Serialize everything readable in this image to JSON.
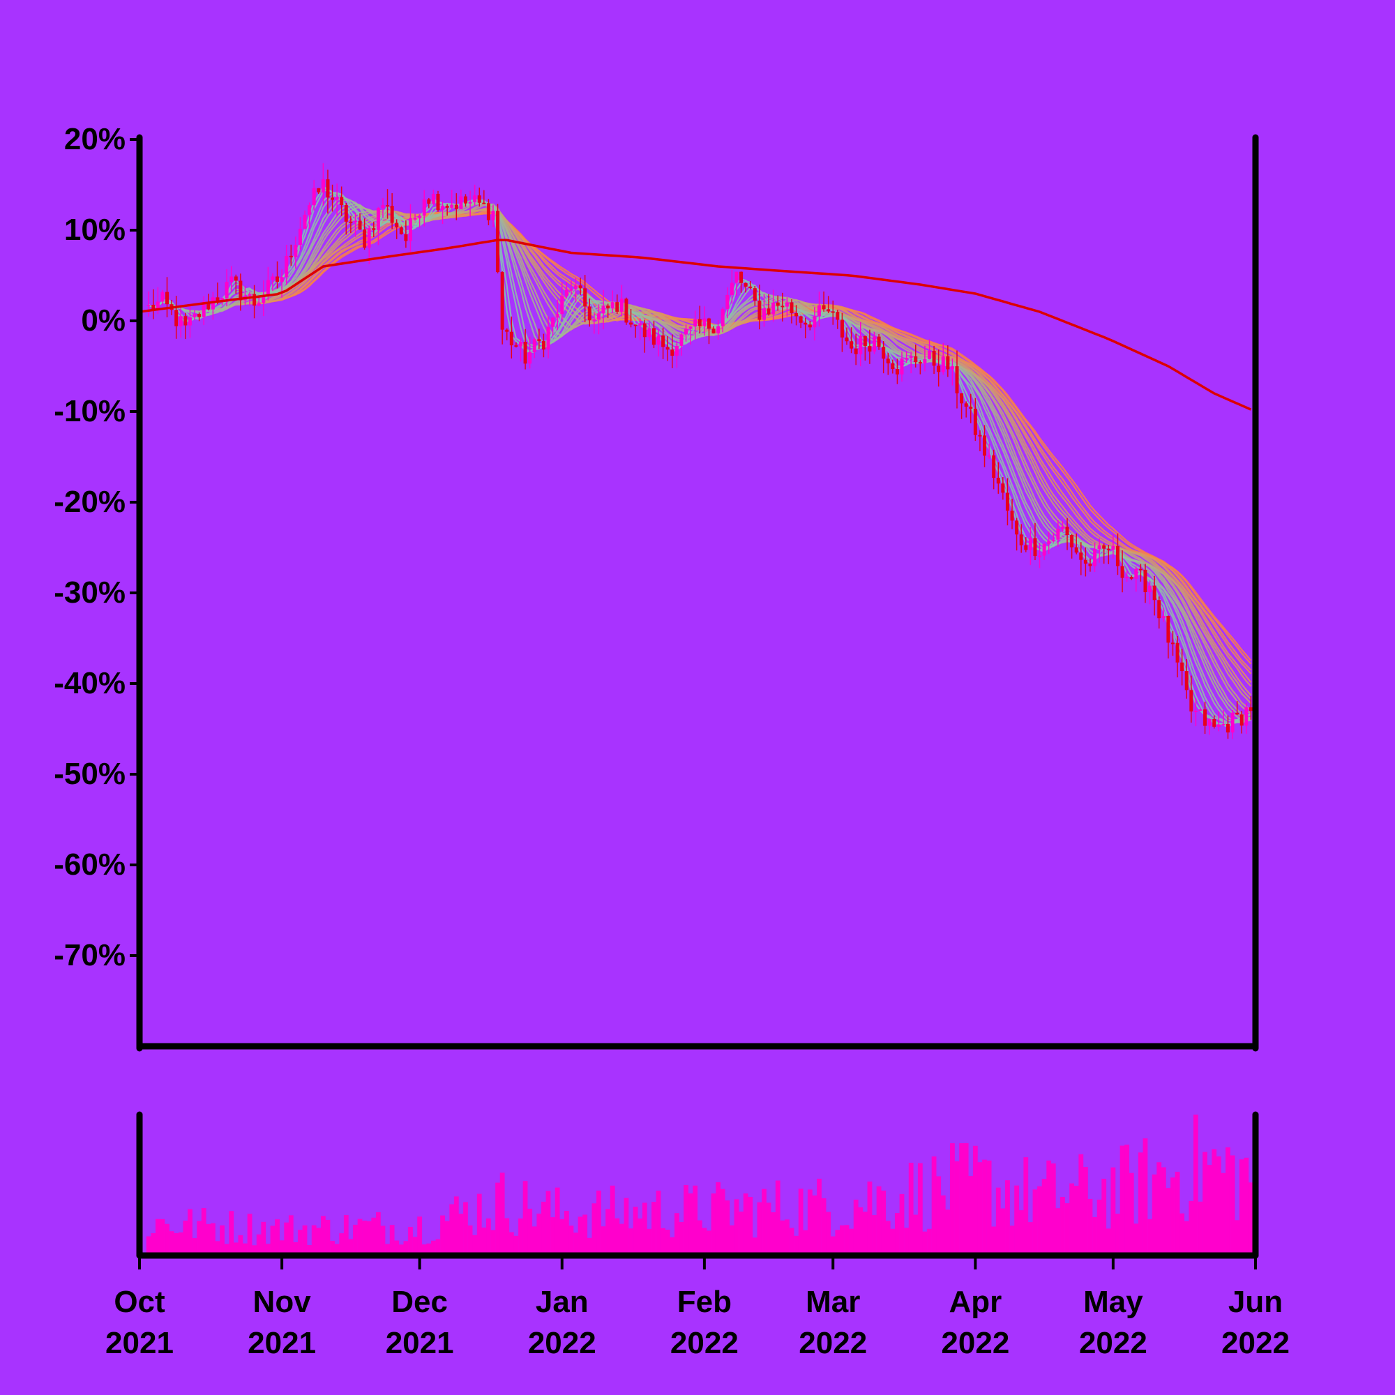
{
  "colors": {
    "background": "#A833FF",
    "axis": "#000000",
    "candle_up": "#FF00CC",
    "candle_down": "#E8001C",
    "long_ma": "#DD0000",
    "ribbon_low": "#7FCCB5",
    "ribbon_high": "#FF8040",
    "volume": "#FF00CC"
  },
  "chart_data": {
    "type": "line",
    "subtype": "candlestick-with-ma-ribbon-and-volume",
    "title": "",
    "xlabel": "",
    "ylabel": "",
    "x_range": [
      "2021-10-01",
      "2022-06-01"
    ],
    "ylim": [
      -80,
      20
    ],
    "y_ticks": [
      "20%",
      "10%",
      "0%",
      "-10%",
      "-20%",
      "-30%",
      "-40%",
      "-50%",
      "-60%",
      "-70%"
    ],
    "y_tick_values": [
      20,
      10,
      0,
      -10,
      -20,
      -30,
      -40,
      -50,
      -60,
      -70
    ],
    "x_ticks": [
      {
        "date": "2021-10-01",
        "month": "Oct",
        "year": "2021"
      },
      {
        "date": "2021-11-01",
        "month": "Nov",
        "year": "2021"
      },
      {
        "date": "2021-12-01",
        "month": "Dec",
        "year": "2021"
      },
      {
        "date": "2022-01-01",
        "month": "Jan",
        "year": "2022"
      },
      {
        "date": "2022-02-01",
        "month": "Feb",
        "year": "2022"
      },
      {
        "date": "2022-03-01",
        "month": "Mar",
        "year": "2022"
      },
      {
        "date": "2022-04-01",
        "month": "Apr",
        "year": "2022"
      },
      {
        "date": "2022-05-01",
        "month": "May",
        "year": "2022"
      },
      {
        "date": "2022-06-01",
        "month": "Jun",
        "year": "2022"
      }
    ],
    "close_path": [
      [
        "2021-10-01",
        1
      ],
      [
        "2021-10-06",
        2
      ],
      [
        "2021-10-11",
        -1
      ],
      [
        "2021-10-16",
        2
      ],
      [
        "2021-10-21",
        4
      ],
      [
        "2021-10-26",
        2
      ],
      [
        "2021-11-01",
        5
      ],
      [
        "2021-11-06",
        12
      ],
      [
        "2021-11-10",
        15
      ],
      [
        "2021-11-14",
        12
      ],
      [
        "2021-11-19",
        9
      ],
      [
        "2021-11-23",
        13
      ],
      [
        "2021-11-28",
        9
      ],
      [
        "2021-12-02",
        14
      ],
      [
        "2021-12-07",
        13
      ],
      [
        "2021-12-13",
        13
      ],
      [
        "2021-12-17",
        12
      ],
      [
        "2021-12-19",
        -1
      ],
      [
        "2021-12-24",
        -4
      ],
      [
        "2021-12-28",
        -2
      ],
      [
        "2022-01-03",
        4
      ],
      [
        "2022-01-08",
        0
      ],
      [
        "2022-01-13",
        2
      ],
      [
        "2022-01-18",
        -1
      ],
      [
        "2022-01-24",
        -3
      ],
      [
        "2022-01-30",
        -1
      ],
      [
        "2022-02-04",
        0
      ],
      [
        "2022-02-08",
        5
      ],
      [
        "2022-02-13",
        1
      ],
      [
        "2022-02-18",
        2
      ],
      [
        "2022-02-23",
        0
      ],
      [
        "2022-02-28",
        1
      ],
      [
        "2022-03-05",
        -3
      ],
      [
        "2022-03-10",
        -2
      ],
      [
        "2022-03-15",
        -5
      ],
      [
        "2022-03-20",
        -4
      ],
      [
        "2022-03-26",
        -5
      ],
      [
        "2022-04-01",
        -12
      ],
      [
        "2022-04-06",
        -18
      ],
      [
        "2022-04-10",
        -24
      ],
      [
        "2022-04-15",
        -25
      ],
      [
        "2022-04-20",
        -23
      ],
      [
        "2022-04-25",
        -27
      ],
      [
        "2022-04-30",
        -25
      ],
      [
        "2022-05-04",
        -28
      ],
      [
        "2022-05-09",
        -29
      ],
      [
        "2022-05-13",
        -35
      ],
      [
        "2022-05-18",
        -43
      ],
      [
        "2022-05-23",
        -45
      ],
      [
        "2022-05-28",
        -44
      ],
      [
        "2022-06-01",
        -42
      ]
    ],
    "long_ma_path": [
      [
        "2021-10-01",
        1
      ],
      [
        "2021-10-16",
        2
      ],
      [
        "2021-11-01",
        3
      ],
      [
        "2021-11-10",
        6
      ],
      [
        "2021-11-23",
        7
      ],
      [
        "2021-12-07",
        8
      ],
      [
        "2021-12-19",
        9
      ],
      [
        "2022-01-03",
        7.5
      ],
      [
        "2022-01-18",
        7
      ],
      [
        "2022-02-04",
        6
      ],
      [
        "2022-02-18",
        5.5
      ],
      [
        "2022-03-05",
        5
      ],
      [
        "2022-03-20",
        4
      ],
      [
        "2022-04-01",
        3
      ],
      [
        "2022-04-15",
        1
      ],
      [
        "2022-04-30",
        -2
      ],
      [
        "2022-05-13",
        -5
      ],
      [
        "2022-05-23",
        -8
      ],
      [
        "2022-06-01",
        -10
      ]
    ],
    "ribbon": {
      "count": 20,
      "min_window_days": 3,
      "max_window_days": 30
    },
    "volume_relative_path": [
      [
        "2021-10-01",
        0.28
      ],
      [
        "2021-11-01",
        0.22
      ],
      [
        "2021-12-01",
        0.25
      ],
      [
        "2021-12-19",
        0.45
      ],
      [
        "2022-01-01",
        0.35
      ],
      [
        "2022-02-01",
        0.38
      ],
      [
        "2022-03-01",
        0.42
      ],
      [
        "2022-04-01",
        0.6
      ],
      [
        "2022-04-15",
        0.5
      ],
      [
        "2022-05-01",
        0.55
      ],
      [
        "2022-05-20",
        0.75
      ],
      [
        "2022-06-01",
        0.65
      ]
    ]
  }
}
